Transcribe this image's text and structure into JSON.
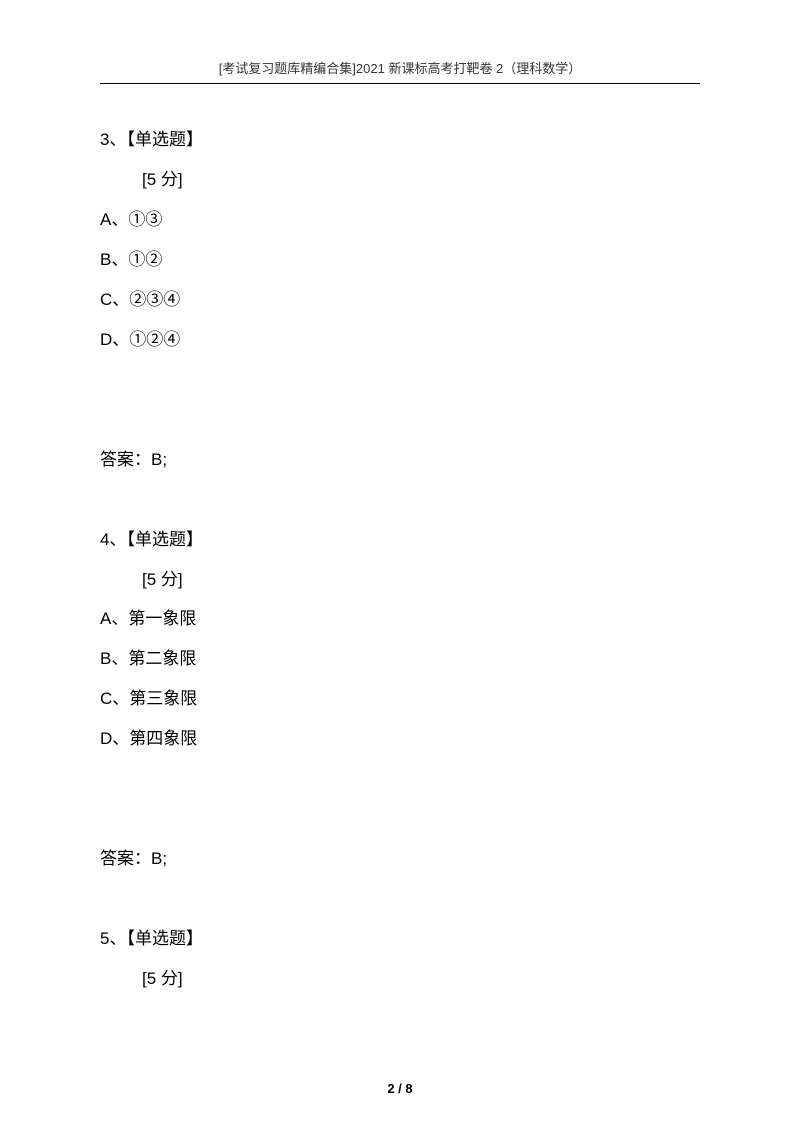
{
  "header": {
    "title": "[考试复习题库精编合集]2021 新课标高考打靶卷 2（理科数学）"
  },
  "questions": [
    {
      "number": "3、【单选题】",
      "score": "[5 分]",
      "options": [
        "A、①③",
        "B、①②",
        "C、②③④",
        "D、①②④"
      ],
      "answer": "答案：B;"
    },
    {
      "number": "4、【单选题】",
      "score": "[5 分]",
      "options": [
        "A、第一象限",
        "B、第二象限",
        "C、第三象限",
        "D、第四象限"
      ],
      "answer": "答案：B;"
    },
    {
      "number": "5、【单选题】",
      "score": "[5 分]"
    }
  ],
  "footer": {
    "page": "2 / 8"
  }
}
